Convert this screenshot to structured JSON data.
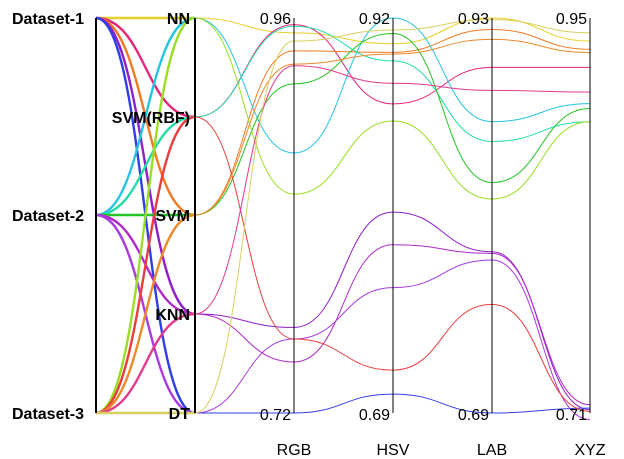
{
  "chart_data": {
    "type": "parallel-coordinates",
    "datasets": [
      "Dataset-1",
      "Dataset-2",
      "Dataset-3"
    ],
    "classifiers": [
      "NN",
      "SVM(RBF)",
      "SVM",
      "KNN",
      "DT"
    ],
    "color_spaces": [
      "RGB",
      "HSV",
      "LAB",
      "XYZ"
    ],
    "axis_max_labels": [
      "0.96",
      "0.92",
      "0.93",
      "0.95"
    ],
    "axis_min_labels": [
      "0.72",
      "0.69",
      "0.69",
      "0.71"
    ],
    "axis_ranges": {
      "RGB": [
        0.72,
        0.96
      ],
      "HSV": [
        0.69,
        0.92
      ],
      "LAB": [
        0.69,
        0.93
      ],
      "XYZ": [
        0.71,
        0.95
      ]
    },
    "series": [
      {
        "dataset": "Dataset-1",
        "classifier": "NN",
        "color": "#e8d02a",
        "values": [
          0.951,
          0.905,
          0.93,
          0.936
        ]
      },
      {
        "dataset": "Dataset-1",
        "classifier": "SVM(RBF)",
        "color": "#e8257a",
        "values": [
          0.956,
          0.87,
          0.9,
          0.92
        ]
      },
      {
        "dataset": "Dataset-1",
        "classifier": "SVM",
        "color": "#ee7a25",
        "values": [
          0.94,
          0.9,
          0.923,
          0.931
        ]
      },
      {
        "dataset": "Dataset-1",
        "classifier": "KNN",
        "color": "#8e1fc9",
        "values": [
          0.772,
          0.807,
          0.788,
          0.712
        ]
      },
      {
        "dataset": "Dataset-1",
        "classifier": "DT",
        "color": "#2f3fe3",
        "values": [
          0.72,
          0.701,
          0.69,
          0.713
        ]
      },
      {
        "dataset": "Dataset-2",
        "classifier": "NN",
        "color": "#25c4e0",
        "values": [
          0.878,
          0.92,
          0.867,
          0.898
        ]
      },
      {
        "dataset": "Dataset-2",
        "classifier": "SVM(RBF)",
        "color": "#25dca8",
        "values": [
          0.955,
          0.895,
          0.855,
          0.887
        ]
      },
      {
        "dataset": "Dataset-2",
        "classifier": "SVM",
        "color": "#25c425",
        "values": [
          0.92,
          0.911,
          0.83,
          0.895
        ]
      },
      {
        "dataset": "Dataset-2",
        "classifier": "KNN",
        "color": "#b02ac8",
        "values": [
          0.751,
          0.788,
          0.787,
          0.715
        ]
      },
      {
        "dataset": "Dataset-2",
        "classifier": "DT",
        "color": "#a83ae0",
        "values": [
          0.765,
          0.763,
          0.783,
          0.706
        ]
      },
      {
        "dataset": "Dataset-3",
        "classifier": "NN",
        "color": "#99dd25",
        "values": [
          0.853,
          0.86,
          0.82,
          0.887
        ]
      },
      {
        "dataset": "Dataset-3",
        "classifier": "SVM(RBF)",
        "color": "#e83e3e",
        "values": [
          0.765,
          0.715,
          0.756,
          0.711
        ]
      },
      {
        "dataset": "Dataset-3",
        "classifier": "SVM",
        "color": "#ec8a2a",
        "values": [
          0.932,
          0.899,
          0.917,
          0.929
        ]
      },
      {
        "dataset": "Dataset-3",
        "classifier": "KNN",
        "color": "#e23a8c",
        "values": [
          0.931,
          0.882,
          0.886,
          0.905
        ]
      },
      {
        "dataset": "Dataset-3",
        "classifier": "DT",
        "color": "#d8d060",
        "values": [
          0.946,
          0.913,
          0.929,
          0.941
        ]
      }
    ]
  }
}
